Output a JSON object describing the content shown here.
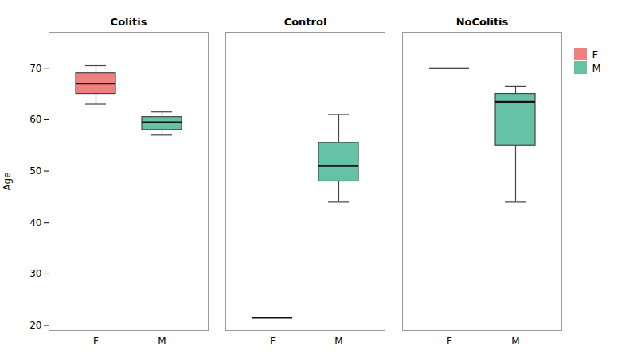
{
  "chart_data": {
    "type": "box",
    "ylabel": "Age",
    "ylim": [
      19,
      77
    ],
    "yticks": [
      20,
      30,
      40,
      50,
      60,
      70
    ],
    "grid": false,
    "legend": "right",
    "categories": [
      "Colitis",
      "Control",
      "NoColitis"
    ],
    "series": [
      {
        "name": "F",
        "color": "#f08080",
        "q1": [
          65.0,
          21.5,
          70.0
        ],
        "median": [
          67.0,
          21.5,
          70.0
        ],
        "q3": [
          69.0,
          21.5,
          70.0
        ],
        "whisker_low": [
          63.0,
          21.5,
          70.0
        ],
        "whisker_high": [
          70.5,
          21.5,
          70.0
        ]
      },
      {
        "name": "M",
        "color": "#66c2a5",
        "q1": [
          58.0,
          48.0,
          55.0
        ],
        "median": [
          59.5,
          51.0,
          63.5
        ],
        "q3": [
          60.5,
          55.5,
          65.0
        ],
        "whisker_low": [
          57.0,
          44.0,
          44.0
        ],
        "whisker_high": [
          61.5,
          61.0,
          66.5
        ]
      }
    ]
  }
}
